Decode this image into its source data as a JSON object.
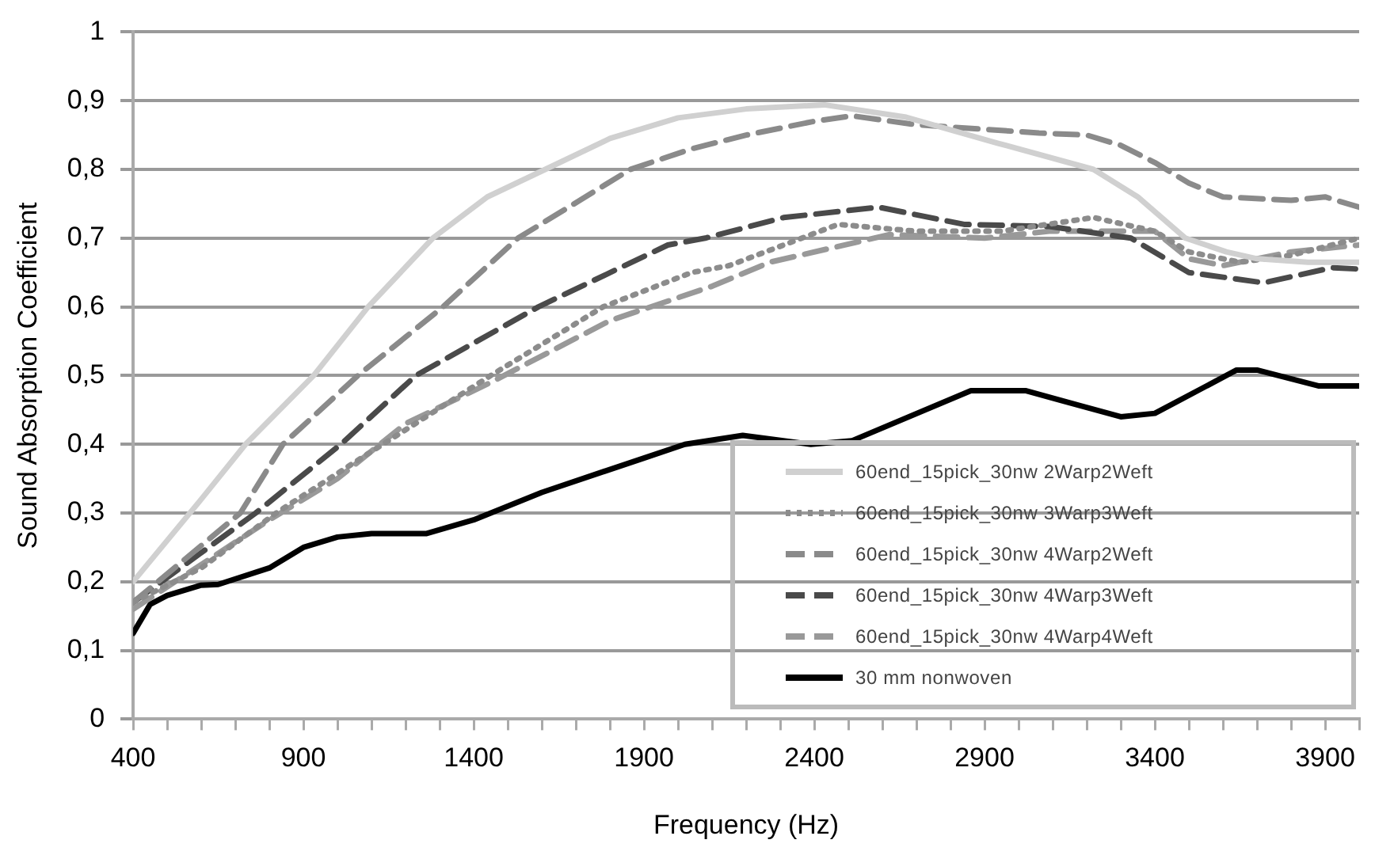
{
  "chart_data": {
    "type": "line",
    "xlabel": "Frequency (Hz)",
    "ylabel": "Sound Absorption Coefficient",
    "xlim": [
      400,
      4000
    ],
    "ylim": [
      0,
      1
    ],
    "xticks": [
      400,
      {
        "value": 500,
        "label": null
      },
      {
        "value": 600,
        "label": null
      },
      {
        "value": 700,
        "label": null
      },
      {
        "value": 800,
        "label": null
      },
      900,
      {
        "value": 1000,
        "label": null
      },
      {
        "value": 1100,
        "label": null
      },
      {
        "value": 1200,
        "label": null
      },
      {
        "value": 1300,
        "label": null
      },
      1400,
      {
        "value": 1500,
        "label": null
      },
      {
        "value": 1600,
        "label": null
      },
      {
        "value": 1700,
        "label": null
      },
      {
        "value": 1800,
        "label": null
      },
      1900,
      {
        "value": 2000,
        "label": null
      },
      {
        "value": 2100,
        "label": null
      },
      {
        "value": 2200,
        "label": null
      },
      {
        "value": 2300,
        "label": null
      },
      2400,
      {
        "value": 2500,
        "label": null
      },
      {
        "value": 2600,
        "label": null
      },
      {
        "value": 2700,
        "label": null
      },
      {
        "value": 2800,
        "label": null
      },
      2900,
      {
        "value": 3000,
        "label": null
      },
      {
        "value": 3100,
        "label": null
      },
      {
        "value": 3200,
        "label": null
      },
      {
        "value": 3300,
        "label": null
      },
      3400,
      {
        "value": 3500,
        "label": null
      },
      {
        "value": 3600,
        "label": null
      },
      {
        "value": 3700,
        "label": null
      },
      {
        "value": 3800,
        "label": null
      },
      3900,
      {
        "value": 4000,
        "label": null
      }
    ],
    "yticks": [
      0,
      {
        "value": 0.1,
        "label": "0,1"
      },
      {
        "value": 0.2,
        "label": "0,2"
      },
      {
        "value": 0.3,
        "label": "0,3"
      },
      {
        "value": 0.4,
        "label": "0,4"
      },
      {
        "value": 0.5,
        "label": "0,5"
      },
      {
        "value": 0.6,
        "label": "0,6"
      },
      {
        "value": 0.7,
        "label": "0,7"
      },
      {
        "value": 0.8,
        "label": "0,8"
      },
      {
        "value": 0.9,
        "label": "0,9"
      },
      1
    ],
    "grid": "y",
    "legend": "bottom right",
    "marker": "none",
    "series": [
      {
        "name": "60end_15pick_30nw 2Warp2Weft",
        "color": "#d0d0d0",
        "line_style": "solid",
        "x": [
          400,
          600,
          730,
          930,
          1090,
          1280,
          1440,
          1610,
          1800,
          2000,
          2200,
          2430,
          2670,
          2940,
          3220,
          3350,
          3490,
          3610,
          3700,
          3850,
          4000
        ],
        "values": [
          0.2,
          0.32,
          0.4,
          0.5,
          0.6,
          0.7,
          0.76,
          0.8,
          0.845,
          0.875,
          0.888,
          0.894,
          0.876,
          0.838,
          0.8,
          0.76,
          0.7,
          0.68,
          0.67,
          0.665,
          0.665
        ]
      },
      {
        "name": "60end_15pick_30nw 3Warp3Weft",
        "color": "#8c8c8c",
        "line_style": "dotted",
        "x": [
          400,
          600,
          820,
          1070,
          1450,
          1780,
          2040,
          2150,
          2470,
          2700,
          2950,
          3220,
          3400,
          3500,
          3650,
          3800,
          4000
        ],
        "values": [
          0.17,
          0.22,
          0.3,
          0.38,
          0.5,
          0.6,
          0.65,
          0.66,
          0.72,
          0.71,
          0.71,
          0.73,
          0.71,
          0.68,
          0.665,
          0.675,
          0.7
        ]
      },
      {
        "name": "60end_15pick_30nw 4Warp2Weft",
        "color": "#8a8a8a",
        "line_style": "dashed",
        "x": [
          400,
          715,
          840,
          1060,
          1310,
          1530,
          1860,
          2040,
          2200,
          2400,
          2510,
          2700,
          3060,
          3200,
          3300,
          3400,
          3500,
          3600,
          3800,
          3900,
          4000
        ],
        "values": [
          0.17,
          0.3,
          0.4,
          0.5,
          0.6,
          0.7,
          0.8,
          0.83,
          0.85,
          0.87,
          0.878,
          0.865,
          0.853,
          0.85,
          0.835,
          0.81,
          0.78,
          0.76,
          0.755,
          0.76,
          0.745
        ]
      },
      {
        "name": "60end_15pick_30nw 4Warp3Weft",
        "color": "#4a4a4a",
        "line_style": "dashed",
        "x": [
          400,
          760,
          1010,
          1230,
          1590,
          1970,
          2080,
          2310,
          2590,
          2840,
          3090,
          3330,
          3500,
          3720,
          3920,
          4000
        ],
        "values": [
          0.17,
          0.3,
          0.4,
          0.5,
          0.6,
          0.69,
          0.7,
          0.73,
          0.745,
          0.72,
          0.717,
          0.7,
          0.65,
          0.635,
          0.657,
          0.655
        ]
      },
      {
        "name": "60end_15pick_30nw 4Warp4Weft",
        "color": "#999999",
        "line_style": "dashed",
        "x": [
          400,
          800,
          1000,
          1200,
          1450,
          1800,
          2100,
          2270,
          2620,
          2900,
          3090,
          3400,
          3500,
          3600,
          3800,
          4000
        ],
        "values": [
          0.16,
          0.29,
          0.35,
          0.43,
          0.49,
          0.58,
          0.63,
          0.665,
          0.705,
          0.7,
          0.71,
          0.71,
          0.67,
          0.66,
          0.68,
          0.69
        ]
      },
      {
        "name": "30 mm nonwoven",
        "color": "#000000",
        "line_style": "solid",
        "x": [
          400,
          450,
          500,
          600,
          650,
          800,
          900,
          1000,
          1100,
          1260,
          1400,
          1600,
          1900,
          2020,
          2190,
          2390,
          2510,
          2860,
          3020,
          3300,
          3400,
          3640,
          3700,
          3880,
          4000
        ],
        "values": [
          0.125,
          0.167,
          0.18,
          0.195,
          0.196,
          0.22,
          0.25,
          0.265,
          0.27,
          0.27,
          0.29,
          0.33,
          0.38,
          0.4,
          0.413,
          0.4,
          0.405,
          0.478,
          0.478,
          0.44,
          0.445,
          0.508,
          0.508,
          0.485,
          0.485
        ]
      }
    ]
  }
}
